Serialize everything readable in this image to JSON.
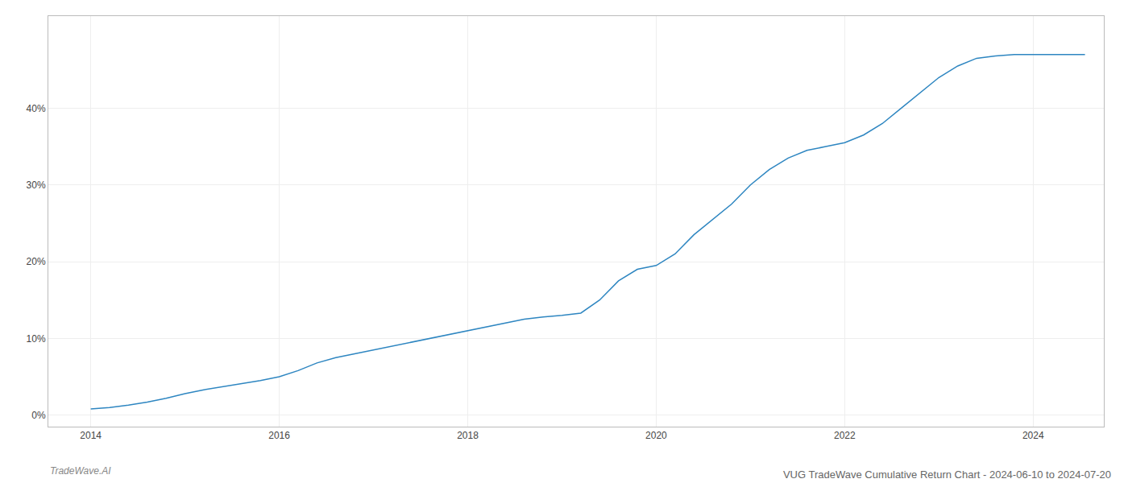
{
  "chart_data": {
    "type": "line",
    "title": "VUG TradeWave Cumulative Return Chart - 2024-06-10 to 2024-07-20",
    "annotations": [
      "TradeWave.AI"
    ],
    "color": "#2e86c1",
    "x": [
      2014.0,
      2014.2,
      2014.4,
      2014.6,
      2014.8,
      2015.0,
      2015.2,
      2015.4,
      2015.6,
      2015.8,
      2016.0,
      2016.2,
      2016.4,
      2016.6,
      2016.8,
      2017.0,
      2017.2,
      2017.4,
      2017.6,
      2017.8,
      2018.0,
      2018.2,
      2018.4,
      2018.6,
      2018.8,
      2019.0,
      2019.2,
      2019.4,
      2019.6,
      2019.8,
      2020.0,
      2020.2,
      2020.4,
      2020.6,
      2020.8,
      2021.0,
      2021.2,
      2021.4,
      2021.6,
      2021.8,
      2022.0,
      2022.2,
      2022.4,
      2022.6,
      2022.8,
      2023.0,
      2023.2,
      2023.4,
      2023.6,
      2023.8,
      2024.0,
      2024.3,
      2024.55
    ],
    "values": [
      0.8,
      1.0,
      1.3,
      1.7,
      2.2,
      2.8,
      3.3,
      3.7,
      4.1,
      4.5,
      5.0,
      5.8,
      6.8,
      7.5,
      8.0,
      8.5,
      9.0,
      9.5,
      10.0,
      10.5,
      11.0,
      11.5,
      12.0,
      12.5,
      12.8,
      13.0,
      13.3,
      15.0,
      17.5,
      19.0,
      19.5,
      21.0,
      23.5,
      25.5,
      27.5,
      30.0,
      32.0,
      33.5,
      34.5,
      35.0,
      35.5,
      36.5,
      38.0,
      40.0,
      42.0,
      44.0,
      45.5,
      46.5,
      46.8,
      47.0,
      47.0,
      47.0,
      47.0
    ],
    "xlim": [
      2013.55,
      2024.75
    ],
    "ylim": [
      -1.5,
      52
    ],
    "xticks": [
      2014,
      2016,
      2018,
      2020,
      2022,
      2024
    ],
    "yticks": [
      {
        "value": 0,
        "label": "0%"
      },
      {
        "value": 10,
        "label": "10%"
      },
      {
        "value": 20,
        "label": "20%"
      },
      {
        "value": 30,
        "label": "30%"
      },
      {
        "value": 40,
        "label": "40%"
      }
    ],
    "grid": true
  }
}
